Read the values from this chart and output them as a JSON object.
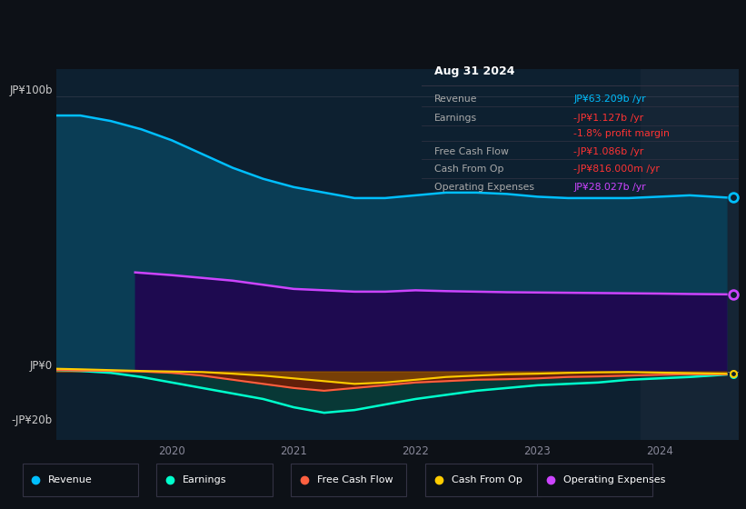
{
  "bg_color": "#0d1117",
  "plot_bg_color": "#0d2030",
  "highlight_bg_color": "#152535",
  "y0_label": "JP¥0",
  "ym20_label": "-JP¥20b",
  "y100_label": "JP¥100b",
  "info_box": {
    "title": "Aug 31 2024",
    "rows": [
      {
        "label": "Revenue",
        "value": "JP¥63.209b /yr",
        "value_color": "#00bfff"
      },
      {
        "label": "Earnings",
        "value": "-JP¥1.127b /yr",
        "value_color": "#ff3333"
      },
      {
        "label": "",
        "value": "-1.8% profit margin",
        "value_color": "#ff3333"
      },
      {
        "label": "Free Cash Flow",
        "value": "-JP¥1.086b /yr",
        "value_color": "#ff3333"
      },
      {
        "label": "Cash From Op",
        "value": "-JP¥816.000m /yr",
        "value_color": "#ff3333"
      },
      {
        "label": "Operating Expenses",
        "value": "JP¥28.027b /yr",
        "value_color": "#cc44ff"
      }
    ]
  },
  "revenue_x": [
    2019.05,
    2019.25,
    2019.5,
    2019.75,
    2020.0,
    2020.25,
    2020.5,
    2020.75,
    2021.0,
    2021.25,
    2021.5,
    2021.75,
    2022.0,
    2022.25,
    2022.5,
    2022.75,
    2023.0,
    2023.25,
    2023.5,
    2023.75,
    2024.0,
    2024.25,
    2024.55
  ],
  "revenue_y": [
    93,
    93,
    91,
    88,
    84,
    79,
    74,
    70,
    67,
    65,
    63,
    63,
    64,
    65,
    65,
    64.5,
    63.5,
    63,
    63,
    63,
    63.5,
    64,
    63.2
  ],
  "opex_x": [
    2019.7,
    2019.85,
    2020.0,
    2020.25,
    2020.5,
    2020.75,
    2021.0,
    2021.25,
    2021.5,
    2021.75,
    2022.0,
    2022.25,
    2022.5,
    2022.75,
    2023.0,
    2023.25,
    2023.5,
    2023.75,
    2024.0,
    2024.25,
    2024.55
  ],
  "opex_y": [
    36,
    35.5,
    35,
    34,
    33,
    31.5,
    30,
    29.5,
    29,
    29,
    29.5,
    29.2,
    29,
    28.8,
    28.7,
    28.6,
    28.5,
    28.4,
    28.3,
    28.15,
    28.027
  ],
  "earnings_x": [
    2019.05,
    2019.25,
    2019.5,
    2019.75,
    2020.0,
    2020.25,
    2020.5,
    2020.75,
    2021.0,
    2021.25,
    2021.5,
    2021.75,
    2022.0,
    2022.25,
    2022.5,
    2022.75,
    2023.0,
    2023.25,
    2023.5,
    2023.75,
    2024.0,
    2024.25,
    2024.55
  ],
  "earnings_y": [
    0.5,
    0.2,
    -0.5,
    -2,
    -4,
    -6,
    -8,
    -10,
    -13,
    -15,
    -14,
    -12,
    -10,
    -8.5,
    -7,
    -6,
    -5,
    -4.5,
    -4,
    -3,
    -2.5,
    -2,
    -1.127
  ],
  "fcf_x": [
    2019.05,
    2019.25,
    2019.5,
    2019.75,
    2020.0,
    2020.25,
    2020.5,
    2020.75,
    2021.0,
    2021.25,
    2021.5,
    2021.75,
    2022.0,
    2022.25,
    2022.5,
    2022.75,
    2023.0,
    2023.25,
    2023.5,
    2023.75,
    2024.0,
    2024.25,
    2024.55
  ],
  "fcf_y": [
    0.5,
    0.3,
    0.2,
    0.0,
    -0.5,
    -1.5,
    -3,
    -4.5,
    -6,
    -7,
    -6,
    -5,
    -4,
    -3.5,
    -3,
    -2.8,
    -2.5,
    -2,
    -1.8,
    -1.5,
    -1.2,
    -1.0,
    -1.086
  ],
  "cfo_x": [
    2019.05,
    2019.25,
    2019.5,
    2019.75,
    2020.0,
    2020.25,
    2020.5,
    2020.75,
    2021.0,
    2021.25,
    2021.5,
    2021.75,
    2022.0,
    2022.25,
    2022.5,
    2022.75,
    2023.0,
    2023.25,
    2023.5,
    2023.75,
    2024.0,
    2024.25,
    2024.55
  ],
  "cfo_y": [
    1.0,
    0.8,
    0.5,
    0.2,
    0.0,
    -0.2,
    -0.8,
    -1.5,
    -2.5,
    -3.5,
    -4.5,
    -4.0,
    -3.0,
    -2.0,
    -1.5,
    -1.0,
    -0.8,
    -0.5,
    -0.3,
    -0.2,
    -0.4,
    -0.6,
    -0.816
  ],
  "xlim_start": 2019.05,
  "xlim_end": 2024.65,
  "ylim_min": -25,
  "ylim_max": 110,
  "highlight_start": 2023.85,
  "highlight_end": 2024.65,
  "legend": [
    {
      "label": "Revenue",
      "color": "#00bfff"
    },
    {
      "label": "Earnings",
      "color": "#00ffcc"
    },
    {
      "label": "Free Cash Flow",
      "color": "#ff6040"
    },
    {
      "label": "Cash From Op",
      "color": "#ffcc00"
    },
    {
      "label": "Operating Expenses",
      "color": "#cc44ff"
    }
  ]
}
